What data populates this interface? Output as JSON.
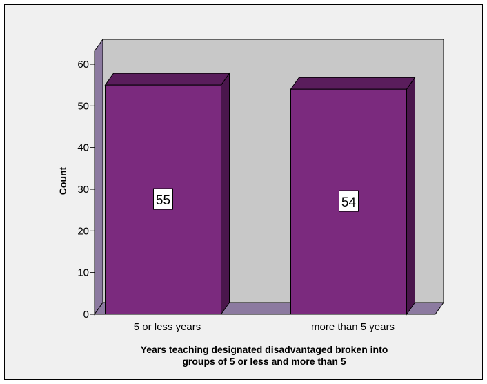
{
  "chart_data": {
    "type": "bar",
    "categories": [
      "5 or less years",
      "more than 5 years"
    ],
    "values": [
      55,
      54
    ],
    "data_labels": [
      "55",
      "54"
    ],
    "title": "",
    "xlabel": "Years teaching designated disadvantaged broken into groups of 5 or less and more than 5",
    "xlabel_lines": [
      "Years teaching designated disadvantaged broken into",
      "groups of 5 or less and more than 5"
    ],
    "ylabel": "Count",
    "ylim": [
      0,
      60
    ],
    "yticks": [
      0,
      10,
      20,
      30,
      40,
      50,
      60
    ],
    "three_d": true,
    "grid": false,
    "colors": {
      "bar": "#7b2a7e",
      "bar_top": "#5a1d5c",
      "bar_side": "#4a164c",
      "back_wall": "#c8c8c8",
      "side_wall": "#8c7aa0",
      "floor": "#8c7aa0",
      "background": "#f0f0f0",
      "label_box": "#ffffff"
    }
  }
}
